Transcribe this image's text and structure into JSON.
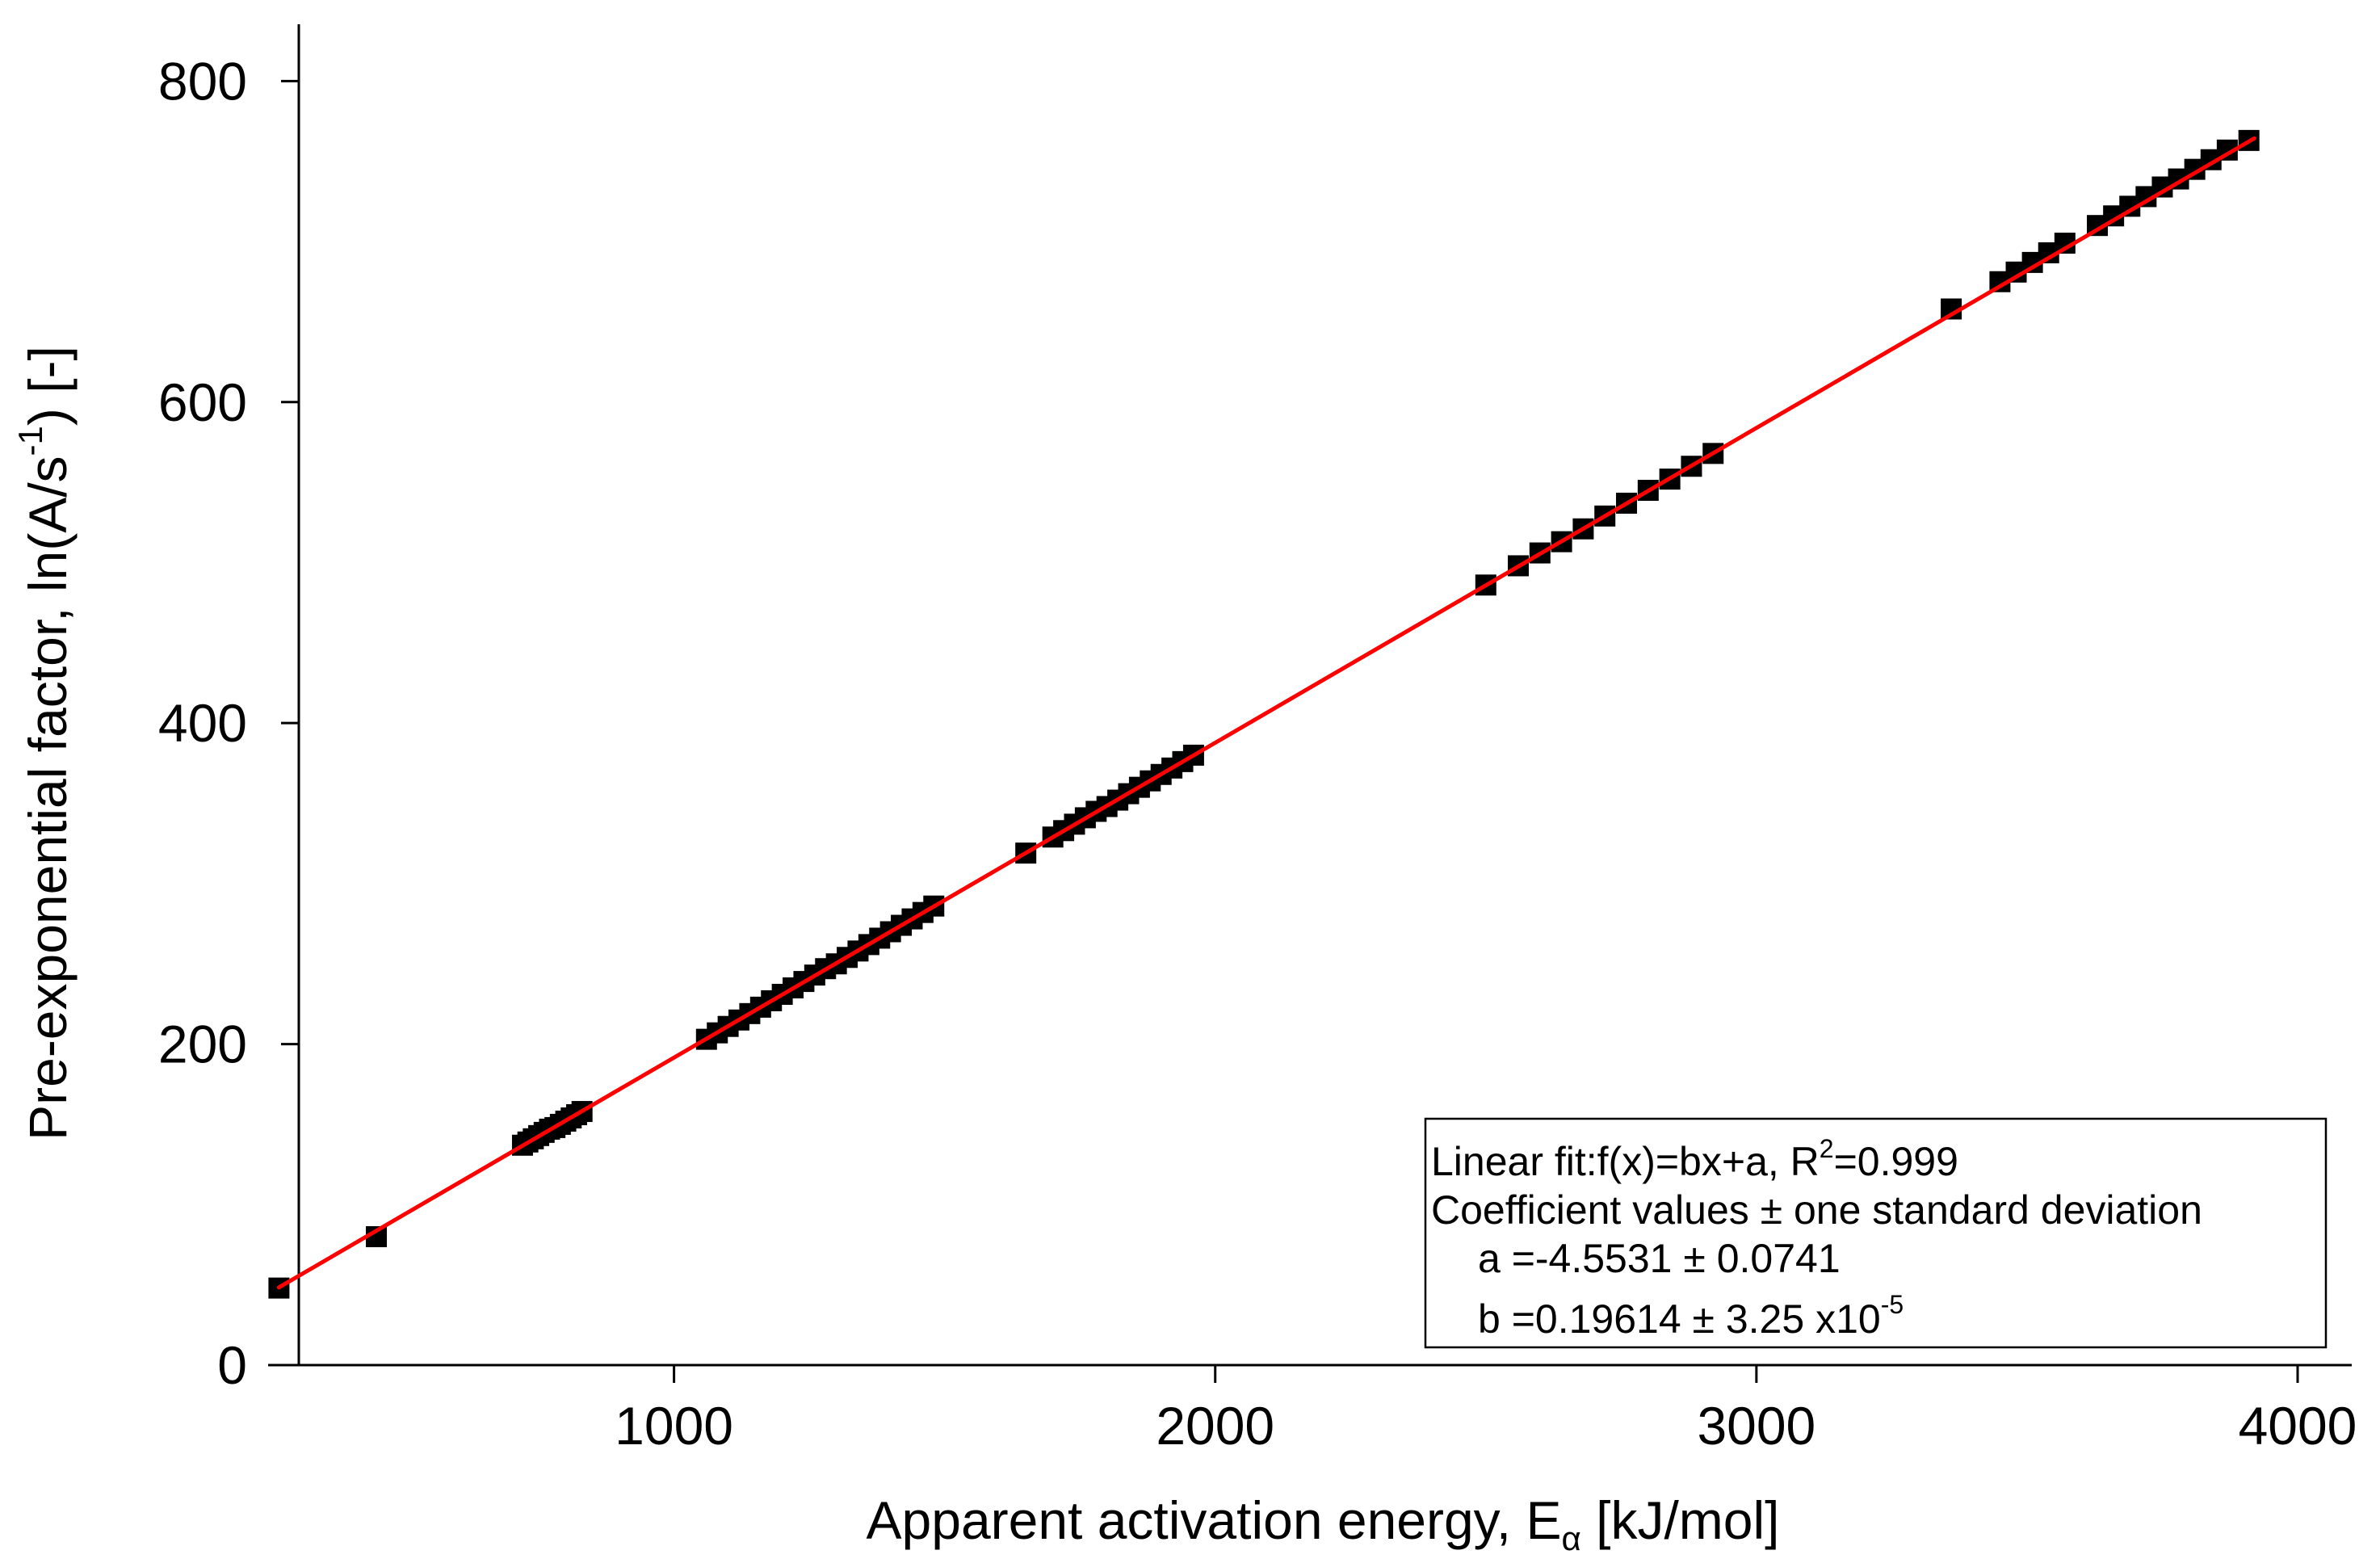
{
  "chart_data": {
    "type": "scatter",
    "title": "",
    "xlabel": "Apparent activation energy, E",
    "xlabel_subscript": "α",
    "xlabel_unit": " [kJ/mol]",
    "ylabel": "Pre-exponential factor, ln(A/s",
    "ylabel_superscript": "-1",
    "ylabel_unit": ") [-]",
    "xlim": [
      250,
      4100
    ],
    "ylim": [
      0,
      850
    ],
    "xticks": [
      1000,
      2000,
      3000,
      4000
    ],
    "xtick_labels": [
      "1000",
      "2000",
      "3000",
      "4000"
    ],
    "yticks": [
      0,
      200,
      400,
      600,
      800
    ],
    "ytick_labels": [
      "0",
      "200",
      "400",
      "600",
      "800"
    ],
    "grid": false,
    "colors": {
      "markers": "#000000",
      "fit_line": "#ff0000",
      "axes": "#000000"
    },
    "series": [
      {
        "name": "data",
        "marker": "square",
        "x": [
          270,
          450,
          720,
          730,
          740,
          750,
          760,
          770,
          780,
          790,
          800,
          810,
          820,
          830,
          1060,
          1080,
          1100,
          1120,
          1140,
          1160,
          1180,
          1200,
          1220,
          1240,
          1260,
          1280,
          1300,
          1320,
          1340,
          1360,
          1380,
          1400,
          1420,
          1440,
          1460,
          1480,
          1650,
          1700,
          1720,
          1740,
          1760,
          1780,
          1800,
          1820,
          1840,
          1860,
          1880,
          1900,
          1920,
          1940,
          1960,
          2500,
          2560,
          2600,
          2640,
          2680,
          2720,
          2760,
          2800,
          2840,
          2880,
          2920,
          3360,
          3450,
          3480,
          3510,
          3540,
          3570,
          3630,
          3660,
          3690,
          3720,
          3750,
          3780,
          3810,
          3840,
          3870,
          3910
        ],
        "y": [
          48,
          80,
          137,
          139,
          141,
          143,
          145,
          147,
          148,
          150,
          152,
          154,
          156,
          158,
          203,
          207,
          211,
          215,
          219,
          223,
          227,
          231,
          235,
          239,
          243,
          247,
          250,
          254,
          258,
          262,
          266,
          270,
          274,
          278,
          282,
          286,
          319,
          329,
          333,
          337,
          341,
          345,
          348,
          352,
          356,
          360,
          364,
          368,
          372,
          376,
          380,
          486,
          498,
          506,
          513,
          521,
          529,
          537,
          545,
          552,
          560,
          568,
          658,
          675,
          681,
          687,
          693,
          699,
          710,
          716,
          722,
          728,
          734,
          739,
          745,
          751,
          757,
          763
        ]
      }
    ],
    "fit": {
      "type": "linear",
      "a": -4.5531,
      "b": 0.19614,
      "x_range": [
        270,
        3920
      ]
    },
    "annotation": {
      "line1_prefix": "Linear fit:f(x)=bx+a, R",
      "line1_sup": "2",
      "line1_suffix": "=0.999",
      "line2": "Coefficient values ± one standard deviation",
      "line3": "a  =-4.5531 ± 0.0741",
      "line4_prefix": "b  =0.19614 ± 3.25 x10",
      "line4_sup": "-5",
      "placement": "bottom-right"
    }
  }
}
